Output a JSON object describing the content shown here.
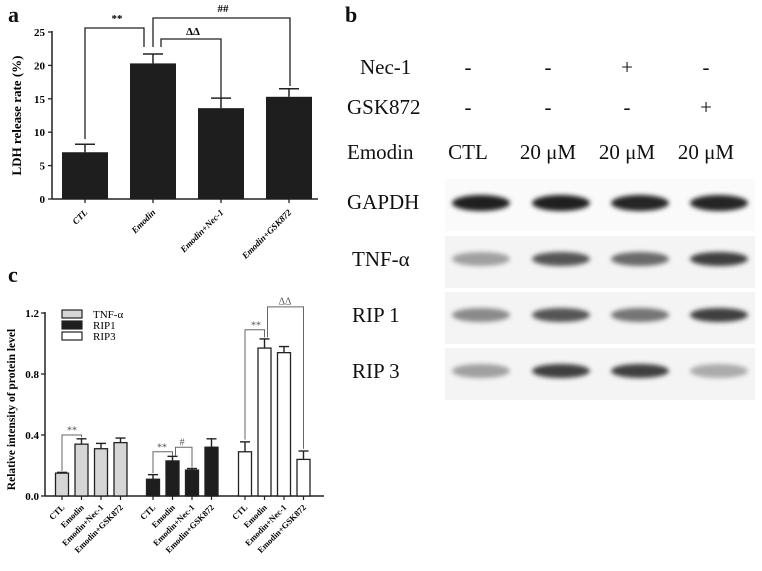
{
  "panel_labels": {
    "a": "a",
    "b": "b",
    "c": "c"
  },
  "chart_data": [
    {
      "panel": "a",
      "type": "bar",
      "title": "",
      "xlabel": "",
      "ylabel": "LDH release rate (%)",
      "categories": [
        "CTL",
        "Emodin",
        "Emodin+Nec-1",
        "Emodin+GSK872"
      ],
      "values": [
        7.0,
        20.3,
        13.6,
        15.3
      ],
      "errors": [
        1.2,
        1.4,
        1.5,
        1.2
      ],
      "ylim": [
        0,
        25
      ],
      "yticks": [
        0,
        5,
        10,
        15,
        20,
        25
      ],
      "bar_color": "#1e1e1e",
      "grid": false,
      "annotations": [
        {
          "from": "CTL",
          "to": "Emodin",
          "label": "**"
        },
        {
          "from": "Emodin",
          "to": "Emodin+Nec-1",
          "label": "ΔΔ"
        },
        {
          "from": "Emodin",
          "to": "Emodin+GSK872",
          "label": "##"
        }
      ]
    },
    {
      "panel": "c",
      "type": "bar",
      "title": "",
      "xlabel": "",
      "ylabel": "Relative intensity of protein level",
      "categories": [
        "CTL",
        "Emodin",
        "Emodin+Nec-1",
        "Emodin+GSK872"
      ],
      "ylim": [
        0,
        1.2
      ],
      "yticks": [
        "0.0",
        "0.4",
        "0.8",
        "1.2"
      ],
      "legend_position": "upper-left",
      "grid": false,
      "series": [
        {
          "name": "TNF-α",
          "color": "#d6d6d6",
          "values": [
            0.15,
            0.34,
            0.31,
            0.35
          ],
          "errors": [
            0.005,
            0.035,
            0.035,
            0.03
          ]
        },
        {
          "name": "RIP1",
          "color": "#1e1e1e",
          "values": [
            0.11,
            0.23,
            0.17,
            0.32
          ],
          "errors": [
            0.03,
            0.03,
            0.01,
            0.055
          ]
        },
        {
          "name": "RIP3",
          "color": "#ffffff",
          "values": [
            0.29,
            0.97,
            0.94,
            0.24
          ],
          "errors": [
            0.065,
            0.06,
            0.04,
            0.055
          ]
        }
      ],
      "annotations": [
        {
          "series": "TNF-α",
          "from": "CTL",
          "to": "Emodin",
          "label": "**"
        },
        {
          "series": "RIP1",
          "from": "CTL",
          "to": "Emodin",
          "label": "**"
        },
        {
          "series": "RIP1",
          "from": "Emodin",
          "to": "Emodin+Nec-1",
          "label": "#"
        },
        {
          "series": "RIP3",
          "from": "CTL",
          "to": "Emodin",
          "label": "**"
        },
        {
          "series": "RIP3",
          "from": "Emodin",
          "to": "Emodin+GSK872",
          "label": "ΔΔ"
        }
      ]
    }
  ],
  "western_blot": {
    "rows": [
      {
        "label": "Nec-1",
        "cells": [
          "-",
          "-",
          "+",
          "-"
        ]
      },
      {
        "label": "GSK872",
        "cells": [
          "-",
          "-",
          "-",
          "+"
        ]
      },
      {
        "label": "Emodin",
        "cells": [
          "CTL",
          "20 μM",
          "20 μM",
          "20 μM"
        ]
      }
    ],
    "proteins": [
      "GAPDH",
      "TNF-α",
      "RIP 1",
      "RIP 3"
    ],
    "band_intensity": {
      "GAPDH": [
        0.95,
        0.95,
        0.92,
        0.92
      ],
      "TNF-α": [
        0.35,
        0.7,
        0.6,
        0.8
      ],
      "RIP 1": [
        0.45,
        0.7,
        0.55,
        0.8
      ],
      "RIP 3": [
        0.35,
        0.8,
        0.8,
        0.3
      ]
    }
  }
}
